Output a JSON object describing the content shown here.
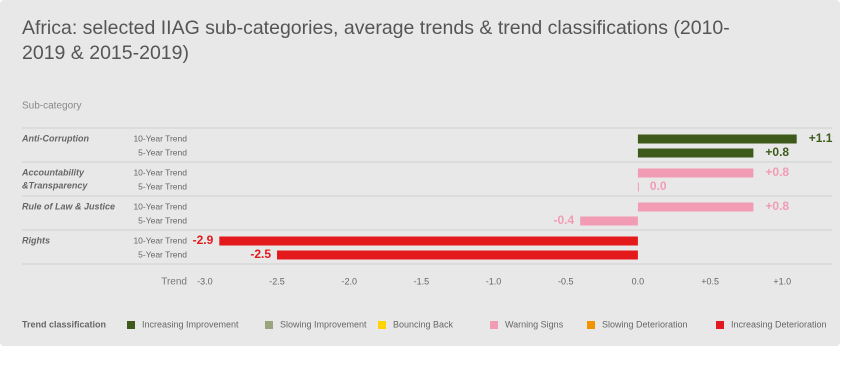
{
  "chart_data": {
    "type": "bar",
    "orientation": "horizontal",
    "title": "Africa: selected IIAG sub-categories, average trends & trend classifications (2010-2019 & 2015-2019)",
    "category_axis_title": "Sub-category",
    "x_axis_title": "Trend",
    "groups": [
      {
        "name": [
          "Anti-Corruption"
        ],
        "bars": [
          {
            "label": "10-Year Trend",
            "value": 1.1,
            "value_label": "+1.1",
            "color": "#3d5a1a"
          },
          {
            "label": "5-Year Trend",
            "value": 0.8,
            "value_label": "+0.8",
            "color": "#3d5a1a"
          }
        ]
      },
      {
        "name": [
          "Accountability",
          "&Transparency"
        ],
        "bars": [
          {
            "label": "10-Year Trend",
            "value": 0.8,
            "value_label": "+0.8",
            "color": "#f29bb5"
          },
          {
            "label": "5-Year Trend",
            "value": 0.0,
            "value_label": "0.0",
            "color": "#f29bb5"
          }
        ]
      },
      {
        "name": [
          "Rule of Law & Justice"
        ],
        "bars": [
          {
            "label": "10-Year Trend",
            "value": 0.8,
            "value_label": "+0.8",
            "color": "#f29bb5"
          },
          {
            "label": "5-Year Trend",
            "value": -0.4,
            "value_label": "-0.4",
            "color": "#f29bb5"
          }
        ]
      },
      {
        "name": [
          "Rights"
        ],
        "bars": [
          {
            "label": "10-Year Trend",
            "value": -2.9,
            "value_label": "-2.9",
            "color": "#e3191c"
          },
          {
            "label": "5-Year Trend",
            "value": -2.5,
            "value_label": "-2.5",
            "color": "#e3191c"
          }
        ]
      }
    ],
    "xlim": [
      -3.2,
      1.4
    ],
    "xticks": [
      {
        "value": -3.0,
        "label": "-3.0"
      },
      {
        "value": -2.5,
        "label": "-2.5"
      },
      {
        "value": -2.0,
        "label": "-2.0"
      },
      {
        "value": -1.5,
        "label": "-1.5"
      },
      {
        "value": -1.0,
        "label": "-1.0"
      },
      {
        "value": -0.5,
        "label": "-0.5"
      },
      {
        "value": 0.0,
        "label": "0.0"
      },
      {
        "value": 0.5,
        "label": "+0.5"
      },
      {
        "value": 1.0,
        "label": "+1.0"
      }
    ],
    "legend": {
      "title": "Trend classification",
      "items": [
        {
          "name": "Increasing Improvement",
          "color": "#3d5a1a"
        },
        {
          "name": "Slowing Improvement",
          "color": "#9aa57d"
        },
        {
          "name": "Bouncing Back",
          "color": "#ffd400"
        },
        {
          "name": "Warning Signs",
          "color": "#f29bb5"
        },
        {
          "name": "Slowing Deterioration",
          "color": "#f39200"
        },
        {
          "name": "Increasing Deterioration",
          "color": "#e3191c"
        }
      ]
    }
  }
}
